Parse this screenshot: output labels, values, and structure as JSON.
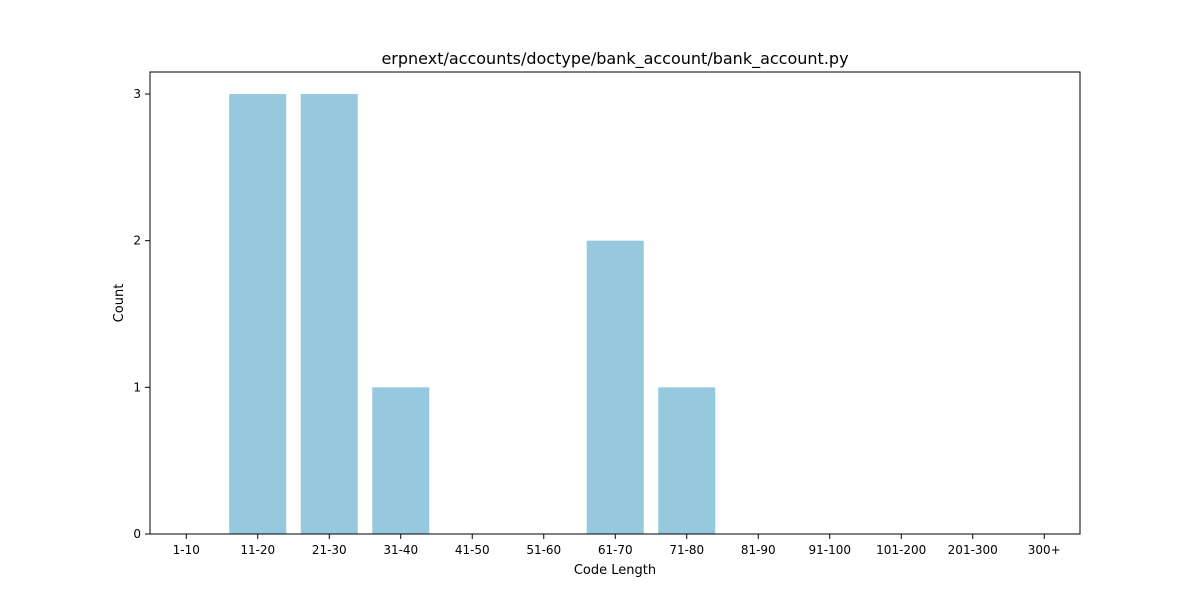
{
  "chart_data": {
    "type": "bar",
    "title": "erpnext/accounts/doctype/bank_account/bank_account.py",
    "xlabel": "Code Length",
    "ylabel": "Count",
    "categories": [
      "1-10",
      "11-20",
      "21-30",
      "31-40",
      "41-50",
      "51-60",
      "61-70",
      "71-80",
      "81-90",
      "91-100",
      "101-200",
      "201-300",
      "300+"
    ],
    "values": [
      0,
      3,
      3,
      1,
      0,
      0,
      2,
      1,
      0,
      0,
      0,
      0,
      0
    ],
    "ylim": [
      0,
      3.15
    ],
    "yticks": [
      0,
      1,
      2,
      3
    ],
    "bar_color": "#96c9de",
    "grid": false,
    "legend": false
  }
}
